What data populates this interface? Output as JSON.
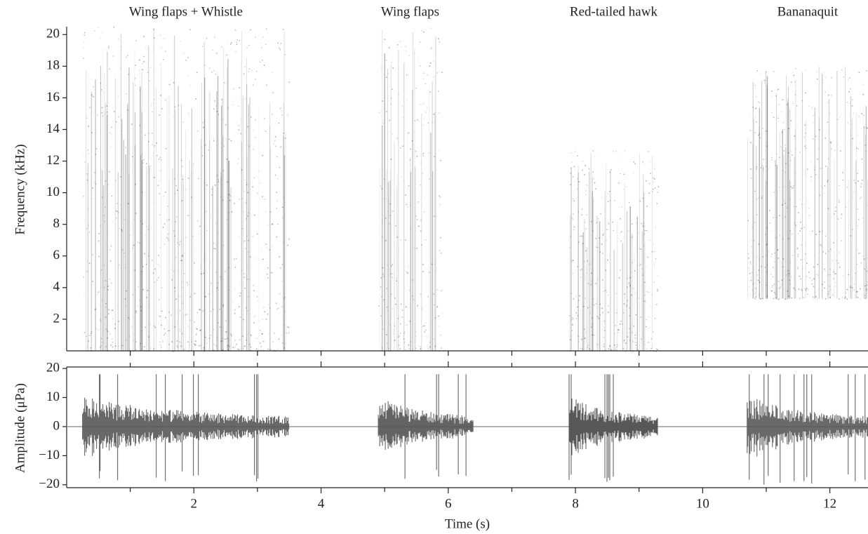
{
  "chart_data": [
    {
      "type": "spectrogram",
      "ylabel": "Frequency (kHz)",
      "xlim": [
        0,
        12.6
      ],
      "ylim": [
        0,
        20.5
      ],
      "yticks": [
        2,
        4,
        6,
        8,
        10,
        12,
        14,
        16,
        18,
        20
      ],
      "xticks": [
        1,
        2,
        3,
        4,
        5,
        6,
        7,
        8,
        9,
        10,
        11,
        12
      ],
      "color": "#222222",
      "segments": [
        {
          "label": "Wing flaps + Whistle",
          "start": 0.25,
          "end": 3.5,
          "fmin": 0,
          "fmax": 20.5
        },
        {
          "label": "Wing flaps",
          "start": 4.9,
          "end": 5.9,
          "fmin": 0,
          "fmax": 20.5
        },
        {
          "label": "Red-tailed hawk",
          "start": 7.9,
          "end": 9.3,
          "fmin": 0,
          "fmax": 12.7
        },
        {
          "label": "Bananaquit",
          "start": 10.7,
          "end": 12.6,
          "fmin": 3.3,
          "fmax": 18
        }
      ]
    },
    {
      "type": "waveform",
      "xlabel": "Time (s)",
      "ylabel": "Amplitude (μPa)",
      "xlim": [
        0,
        12.6
      ],
      "ylim": [
        -21,
        20.5
      ],
      "xticks": [
        2,
        4,
        6,
        8,
        10,
        12
      ],
      "xminorticks": [
        1,
        3,
        5,
        7,
        9,
        11
      ],
      "yticks": [
        {
          "value": -20,
          "label": "−20"
        },
        {
          "value": -10,
          "label": "−10"
        },
        0,
        10,
        20
      ],
      "color": "#555555",
      "segments": [
        {
          "start": 0.25,
          "end": 3.5,
          "amp_max": 18,
          "amp_min": -19
        },
        {
          "start": 4.9,
          "end": 6.4,
          "amp_max": 18,
          "amp_min": -18
        },
        {
          "start": 7.9,
          "end": 9.3,
          "amp_max": 18,
          "amp_min": -20
        },
        {
          "start": 10.7,
          "end": 12.6,
          "amp_max": 18,
          "amp_min": -20
        }
      ]
    }
  ]
}
